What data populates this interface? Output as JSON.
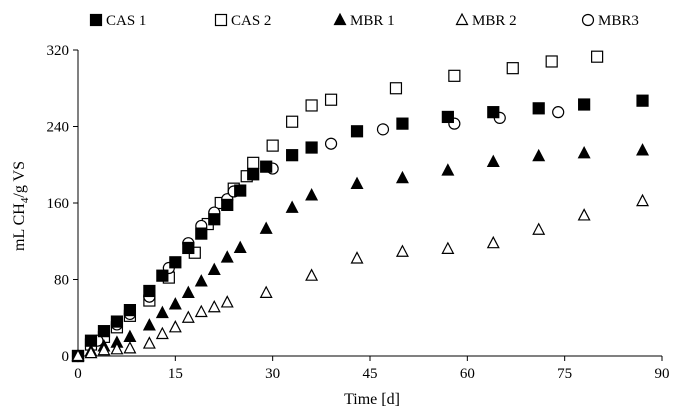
{
  "chart_data": {
    "type": "scatter",
    "title": "",
    "xlabel": "Time [d]",
    "ylabel_main": "mL CH",
    "ylabel_sub": "4",
    "ylabel_rest": "/g VS",
    "xlim": [
      0,
      90
    ],
    "ylim": [
      0,
      320
    ],
    "xticks": [
      0,
      15,
      30,
      45,
      60,
      75,
      90
    ],
    "yticks": [
      0,
      80,
      160,
      240,
      320
    ],
    "grid": false,
    "legend_position": "top",
    "series": [
      {
        "name": "CAS 1",
        "marker": "square-filled",
        "points": [
          [
            0,
            0
          ],
          [
            2,
            16
          ],
          [
            4,
            26
          ],
          [
            6,
            36
          ],
          [
            8,
            48
          ],
          [
            11,
            68
          ],
          [
            13,
            84
          ],
          [
            15,
            98
          ],
          [
            17,
            113
          ],
          [
            19,
            128
          ],
          [
            21,
            143
          ],
          [
            23,
            158
          ],
          [
            25,
            173
          ],
          [
            27,
            190
          ],
          [
            29,
            198
          ],
          [
            33,
            210
          ],
          [
            36,
            218
          ],
          [
            43,
            235
          ],
          [
            50,
            243
          ],
          [
            57,
            250
          ],
          [
            64,
            255
          ],
          [
            71,
            259
          ],
          [
            78,
            263
          ],
          [
            87,
            267
          ]
        ]
      },
      {
        "name": "CAS 2",
        "marker": "square-open",
        "points": [
          [
            0,
            0
          ],
          [
            2,
            12
          ],
          [
            4,
            20
          ],
          [
            6,
            30
          ],
          [
            8,
            42
          ],
          [
            11,
            58
          ],
          [
            14,
            82
          ],
          [
            18,
            108
          ],
          [
            20,
            138
          ],
          [
            22,
            160
          ],
          [
            24,
            175
          ],
          [
            26,
            188
          ],
          [
            27,
            202
          ],
          [
            30,
            220
          ],
          [
            33,
            245
          ],
          [
            36,
            262
          ],
          [
            39,
            268
          ],
          [
            49,
            280
          ],
          [
            58,
            293
          ],
          [
            67,
            301
          ],
          [
            73,
            308
          ],
          [
            80,
            313
          ]
        ]
      },
      {
        "name": "MBR 1",
        "marker": "triangle-filled",
        "points": [
          [
            0,
            0
          ],
          [
            2,
            5
          ],
          [
            4,
            10
          ],
          [
            6,
            14
          ],
          [
            8,
            20
          ],
          [
            11,
            32
          ],
          [
            13,
            45
          ],
          [
            15,
            54
          ],
          [
            17,
            66
          ],
          [
            19,
            78
          ],
          [
            21,
            90
          ],
          [
            23,
            103
          ],
          [
            25,
            113
          ],
          [
            29,
            133
          ],
          [
            33,
            155
          ],
          [
            36,
            168
          ],
          [
            43,
            180
          ],
          [
            50,
            186
          ],
          [
            57,
            194
          ],
          [
            64,
            203
          ],
          [
            71,
            209
          ],
          [
            78,
            212
          ],
          [
            87,
            215
          ]
        ]
      },
      {
        "name": "MBR 2",
        "marker": "triangle-open",
        "points": [
          [
            0,
            0
          ],
          [
            2,
            3
          ],
          [
            4,
            6
          ],
          [
            6,
            7
          ],
          [
            8,
            8
          ],
          [
            11,
            13
          ],
          [
            13,
            23
          ],
          [
            15,
            30
          ],
          [
            17,
            40
          ],
          [
            19,
            46
          ],
          [
            21,
            51
          ],
          [
            23,
            56
          ],
          [
            29,
            66
          ],
          [
            36,
            84
          ],
          [
            43,
            102
          ],
          [
            50,
            109
          ],
          [
            57,
            112
          ],
          [
            64,
            118
          ],
          [
            71,
            132
          ],
          [
            78,
            147
          ],
          [
            87,
            162
          ]
        ]
      },
      {
        "name": "MBR3",
        "marker": "circle-open",
        "points": [
          [
            0,
            0
          ],
          [
            3,
            16
          ],
          [
            6,
            33
          ],
          [
            8,
            44
          ],
          [
            11,
            62
          ],
          [
            14,
            92
          ],
          [
            17,
            118
          ],
          [
            19,
            136
          ],
          [
            21,
            150
          ],
          [
            23,
            164
          ],
          [
            24,
            172
          ],
          [
            30,
            196
          ],
          [
            39,
            222
          ],
          [
            47,
            237
          ],
          [
            58,
            243
          ],
          [
            65,
            249
          ],
          [
            74,
            255
          ]
        ]
      }
    ]
  }
}
